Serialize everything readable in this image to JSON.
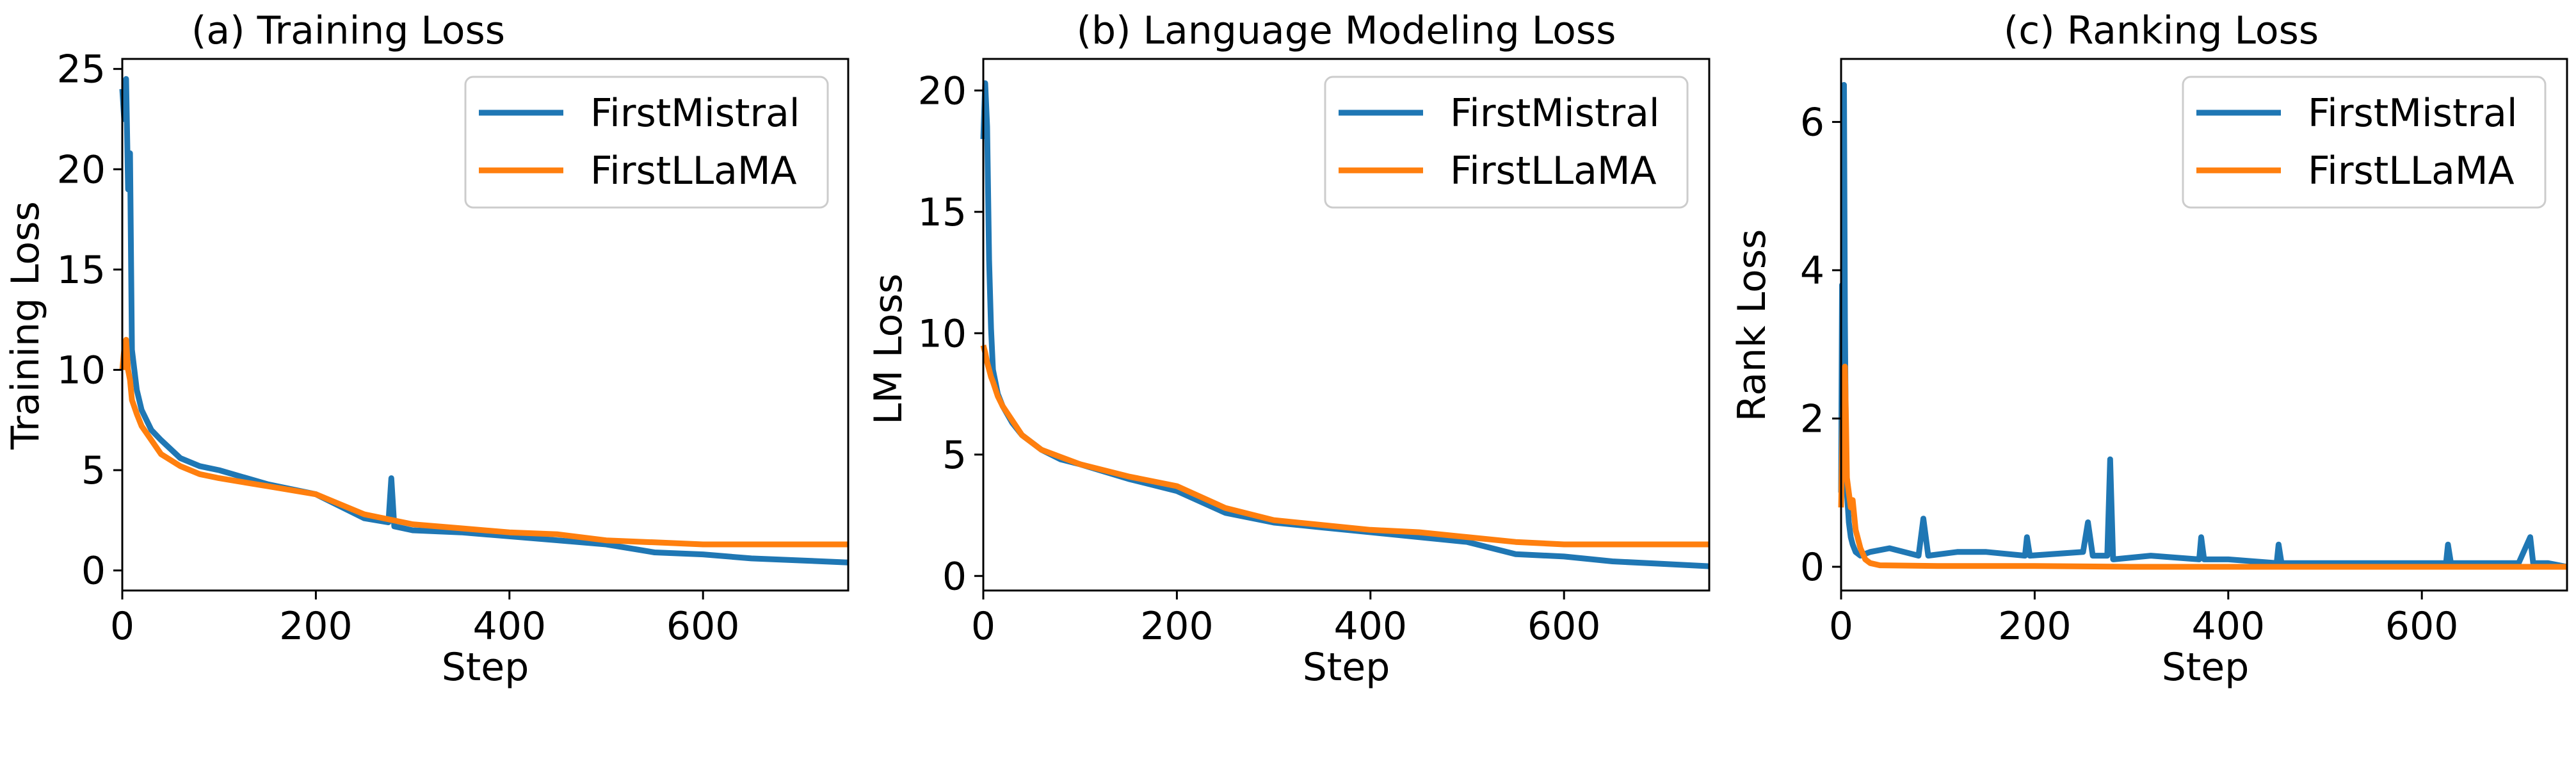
{
  "colors": {
    "FirstMistral": "#1f77b4",
    "FirstLLaMA": "#ff7f0e"
  },
  "chart_data": [
    {
      "type": "line",
      "title": "(a) Training Loss",
      "xlabel": "Step",
      "ylabel": "Training Loss",
      "xlim": [
        0,
        750
      ],
      "ylim": [
        -1,
        25.5
      ],
      "xticks": [
        0,
        200,
        400,
        600
      ],
      "yticks": [
        0,
        5,
        10,
        15,
        20,
        25
      ],
      "grid": false,
      "legend": "top-right",
      "series": [
        {
          "name": "FirstMistral",
          "color": "#1f77b4",
          "x": [
            0,
            2,
            4,
            6,
            8,
            10,
            15,
            20,
            30,
            40,
            60,
            80,
            100,
            150,
            200,
            250,
            275,
            278,
            281,
            300,
            350,
            400,
            450,
            500,
            550,
            600,
            650,
            700,
            750
          ],
          "y": [
            24.0,
            22.5,
            24.5,
            19.0,
            20.8,
            11.0,
            9.0,
            8.0,
            7.0,
            6.5,
            5.6,
            5.2,
            5.0,
            4.3,
            3.8,
            2.6,
            2.4,
            4.6,
            2.2,
            2.0,
            1.9,
            1.7,
            1.5,
            1.3,
            0.9,
            0.8,
            0.6,
            0.5,
            0.4
          ]
        },
        {
          "name": "FirstLLaMA",
          "color": "#ff7f0e",
          "x": [
            0,
            2,
            4,
            6,
            8,
            10,
            15,
            20,
            30,
            40,
            60,
            80,
            100,
            150,
            200,
            250,
            300,
            350,
            400,
            450,
            500,
            550,
            600,
            650,
            700,
            750
          ],
          "y": [
            10.0,
            11.0,
            11.5,
            10.0,
            9.5,
            8.5,
            7.8,
            7.2,
            6.5,
            5.8,
            5.2,
            4.8,
            4.6,
            4.2,
            3.8,
            2.8,
            2.3,
            2.1,
            1.9,
            1.8,
            1.5,
            1.4,
            1.3,
            1.3,
            1.3,
            1.3
          ]
        }
      ]
    },
    {
      "type": "line",
      "title": "(b) Language Modeling Loss",
      "xlabel": "Step",
      "ylabel": "LM Loss",
      "xlim": [
        0,
        750
      ],
      "ylim": [
        -0.6,
        21.3
      ],
      "xticks": [
        0,
        200,
        400,
        600
      ],
      "yticks": [
        0,
        5,
        10,
        15,
        20
      ],
      "grid": false,
      "legend": "top-right",
      "series": [
        {
          "name": "FirstMistral",
          "color": "#1f77b4",
          "x": [
            0,
            2,
            4,
            6,
            8,
            10,
            15,
            20,
            30,
            40,
            60,
            80,
            100,
            150,
            200,
            250,
            300,
            350,
            400,
            450,
            500,
            550,
            600,
            650,
            700,
            750
          ],
          "y": [
            18.0,
            20.3,
            18.5,
            13.0,
            10.2,
            8.5,
            7.5,
            7.0,
            6.3,
            5.8,
            5.2,
            4.8,
            4.6,
            4.0,
            3.5,
            2.6,
            2.2,
            2.0,
            1.8,
            1.6,
            1.4,
            0.9,
            0.8,
            0.6,
            0.5,
            0.4
          ]
        },
        {
          "name": "FirstLLaMA",
          "color": "#ff7f0e",
          "x": [
            0,
            2,
            4,
            6,
            8,
            10,
            15,
            20,
            30,
            40,
            60,
            80,
            100,
            150,
            200,
            250,
            300,
            350,
            400,
            450,
            500,
            550,
            600,
            650,
            700,
            750
          ],
          "y": [
            9.5,
            9.2,
            8.8,
            8.5,
            8.2,
            8.0,
            7.4,
            7.0,
            6.4,
            5.8,
            5.2,
            4.9,
            4.6,
            4.1,
            3.7,
            2.8,
            2.3,
            2.1,
            1.9,
            1.8,
            1.6,
            1.4,
            1.3,
            1.3,
            1.3,
            1.3
          ]
        }
      ]
    },
    {
      "type": "line",
      "title": "(c) Ranking Loss",
      "xlabel": "Step",
      "ylabel": "Rank Loss",
      "xlim": [
        0,
        750
      ],
      "ylim": [
        -0.32,
        6.85
      ],
      "xticks": [
        0,
        200,
        400,
        600
      ],
      "yticks": [
        0,
        2,
        4,
        6
      ],
      "grid": false,
      "legend": "top-right",
      "series": [
        {
          "name": "FirstMistral",
          "color": "#1f77b4",
          "x": [
            0,
            1,
            2,
            3,
            4,
            5,
            6,
            8,
            10,
            12,
            15,
            20,
            30,
            50,
            80,
            85,
            90,
            120,
            150,
            190,
            192,
            195,
            250,
            255,
            260,
            275,
            278,
            281,
            320,
            370,
            372,
            375,
            400,
            450,
            452,
            455,
            500,
            550,
            600,
            625,
            627,
            630,
            650,
            700,
            712,
            715,
            730,
            750
          ],
          "y": [
            1.0,
            3.8,
            2.7,
            6.5,
            3.3,
            1.5,
            1.0,
            0.6,
            0.4,
            0.3,
            0.2,
            0.15,
            0.2,
            0.25,
            0.15,
            0.65,
            0.15,
            0.2,
            0.2,
            0.15,
            0.4,
            0.15,
            0.2,
            0.6,
            0.15,
            0.15,
            1.45,
            0.1,
            0.15,
            0.1,
            0.4,
            0.1,
            0.1,
            0.05,
            0.3,
            0.05,
            0.05,
            0.05,
            0.05,
            0.05,
            0.3,
            0.05,
            0.05,
            0.05,
            0.4,
            0.05,
            0.05,
            0.0
          ]
        },
        {
          "name": "FirstLLaMA",
          "color": "#ff7f0e",
          "x": [
            0,
            2,
            4,
            5,
            6,
            8,
            10,
            12,
            15,
            20,
            25,
            30,
            40,
            100,
            200,
            300,
            400,
            500,
            600,
            700,
            750
          ],
          "y": [
            0.8,
            2.2,
            2.7,
            2.0,
            1.2,
            1.0,
            0.8,
            0.9,
            0.5,
            0.25,
            0.1,
            0.05,
            0.02,
            0.01,
            0.01,
            0.0,
            0.0,
            0.0,
            0.0,
            0.0,
            0.0
          ]
        }
      ]
    }
  ]
}
